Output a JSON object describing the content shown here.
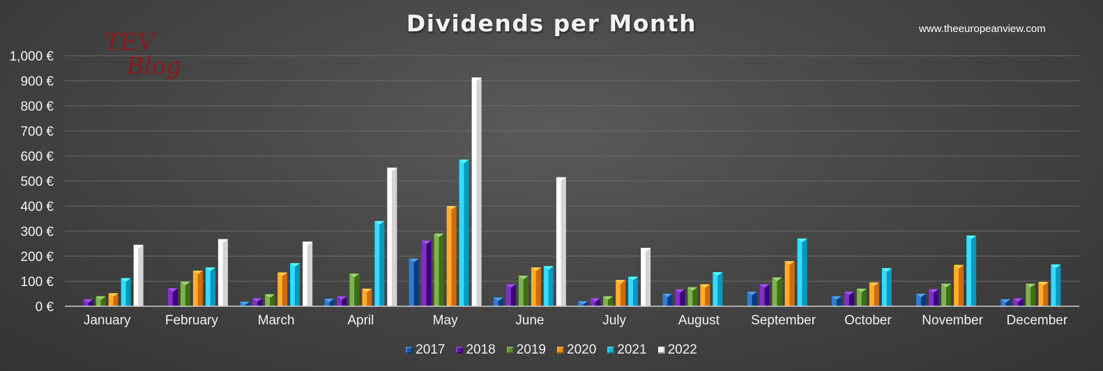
{
  "header": {
    "title": "Dividends per Month",
    "watermark": "www.theeuropeanview.com",
    "logo_line1": "TEV",
    "logo_line2": "Blog"
  },
  "chart_data": {
    "type": "bar",
    "title": "Dividends per Month",
    "xlabel": "",
    "ylabel": "",
    "ylim": [
      0,
      1000
    ],
    "yticks": [
      0,
      100,
      200,
      300,
      400,
      500,
      600,
      700,
      800,
      900,
      1000
    ],
    "ytick_labels": [
      "0 €",
      "100 €",
      "200 €",
      "300 €",
      "400 €",
      "500 €",
      "600 €",
      "700 €",
      "800 €",
      "900 €",
      "1,000 €"
    ],
    "grid": true,
    "legend_position": "bottom",
    "categories": [
      "January",
      "February",
      "March",
      "April",
      "May",
      "June",
      "July",
      "August",
      "September",
      "October",
      "November",
      "December"
    ],
    "series": [
      {
        "name": "2017",
        "color": "#0e5aa7",
        "values": [
          0,
          0,
          18,
          30,
          190,
          35,
          20,
          50,
          58,
          40,
          50,
          28
        ]
      },
      {
        "name": "2018",
        "color": "#5b0fa0",
        "values": [
          28,
          72,
          32,
          40,
          262,
          88,
          32,
          68,
          88,
          58,
          68,
          32
        ]
      },
      {
        "name": "2019",
        "color": "#5b8f2e",
        "values": [
          40,
          98,
          48,
          130,
          290,
          122,
          40,
          76,
          115,
          70,
          90,
          90
        ]
      },
      {
        "name": "2020",
        "color": "#f08a0c",
        "values": [
          52,
          142,
          135,
          70,
          400,
          155,
          105,
          88,
          180,
          95,
          165,
          97
        ]
      },
      {
        "name": "2021",
        "color": "#12b8e0",
        "values": [
          112,
          155,
          172,
          340,
          585,
          160,
          118,
          136,
          270,
          152,
          282,
          167
        ]
      },
      {
        "name": "2022",
        "color": "#f2f2f2",
        "values": [
          245,
          268,
          258,
          553,
          913,
          515,
          233,
          0,
          0,
          0,
          0,
          0
        ]
      }
    ]
  }
}
